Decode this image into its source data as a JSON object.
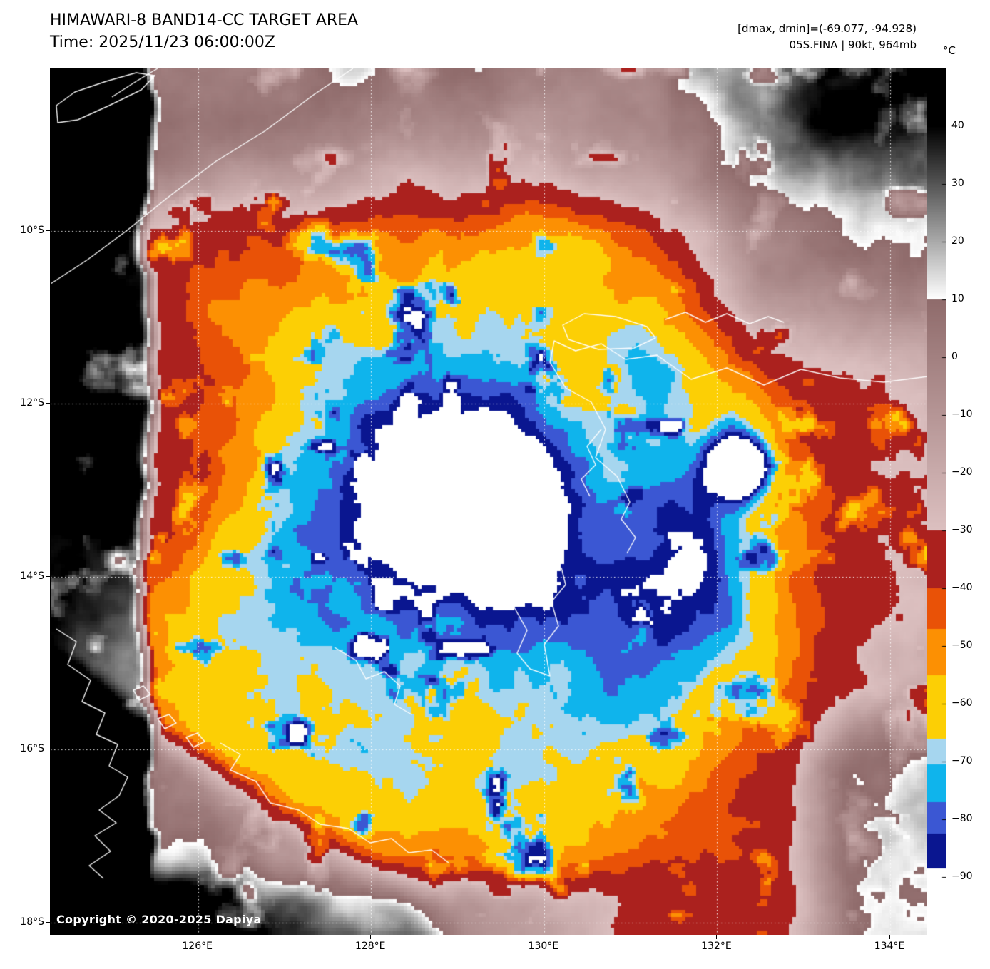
{
  "header": {
    "title": "HIMAWARI-8 BAND14-CC TARGET AREA",
    "time": "Time: 2025/11/23 06:00:00Z"
  },
  "annotations": {
    "dmax_dmin": "[dmax, dmin]=(-69.077, -94.928)",
    "storm": "05S.FINA | 90kt, 964mb"
  },
  "colorbar": {
    "unit": "°C",
    "ticks": [
      {
        "label": "40",
        "value": 40
      },
      {
        "label": "30",
        "value": 30
      },
      {
        "label": "20",
        "value": 20
      },
      {
        "label": "10",
        "value": 10
      },
      {
        "label": "0",
        "value": 0
      },
      {
        "label": "−10",
        "value": -10
      },
      {
        "label": "−20",
        "value": -20
      },
      {
        "label": "−30",
        "value": -30
      },
      {
        "label": "−40",
        "value": -40
      },
      {
        "label": "−50",
        "value": -50
      },
      {
        "label": "−60",
        "value": -60
      },
      {
        "label": "−70",
        "value": -70
      },
      {
        "label": "−80",
        "value": -80
      },
      {
        "label": "−90",
        "value": -90
      }
    ]
  },
  "axes": {
    "lat_ticks": [
      {
        "label": "10°S",
        "deg": 10
      },
      {
        "label": "12°S",
        "deg": 12
      },
      {
        "label": "14°S",
        "deg": 14
      },
      {
        "label": "16°S",
        "deg": 16
      },
      {
        "label": "18°S",
        "deg": 18
      }
    ],
    "lon_ticks": [
      {
        "label": "126°E",
        "deg": 126
      },
      {
        "label": "128°E",
        "deg": 128
      },
      {
        "label": "130°E",
        "deg": 130
      },
      {
        "label": "132°E",
        "deg": 132
      },
      {
        "label": "134°E",
        "deg": 134
      }
    ]
  },
  "copyright": "Copyright © 2020-2025 Dapiya",
  "palette": {
    "gray_black_at": 40,
    "gray_white_at": 10,
    "mauve_dark": "#8f6b6b",
    "mauve_light": "#dcc0c0",
    "bands": [
      {
        "min": -40.0,
        "max": -30.0,
        "color": "#ab211e"
      },
      {
        "min": -47.0,
        "max": -40.0,
        "color": "#e95207"
      },
      {
        "min": -55.0,
        "max": -47.0,
        "color": "#fc9003"
      },
      {
        "min": -66.0,
        "max": -55.0,
        "color": "#fccf05"
      },
      {
        "min": -70.5,
        "max": -66.0,
        "color": "#a6d6ef"
      },
      {
        "min": -77.0,
        "max": -70.5,
        "color": "#0fb4ec"
      },
      {
        "min": -82.5,
        "max": -77.0,
        "color": "#3b57d3"
      },
      {
        "min": -88.5,
        "max": -82.5,
        "color": "#0a1690"
      },
      {
        "min": -150.0,
        "max": -88.5,
        "color": "#ffffff"
      }
    ],
    "gridline_color": "#ffffff",
    "coastline_color": "#ffffff"
  }
}
